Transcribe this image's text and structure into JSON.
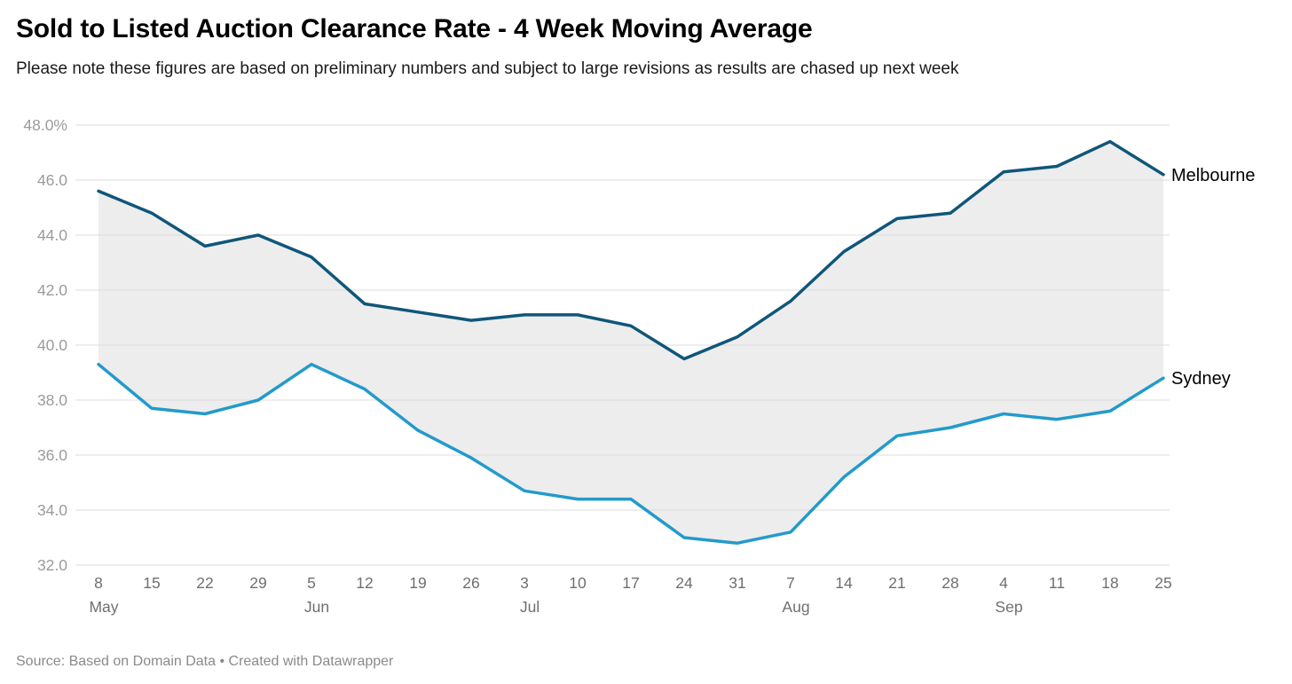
{
  "header": {
    "title": "Sold to Listed Auction Clearance Rate - 4 Week Moving Average",
    "subtitle": "Please note these figures are based on preliminary numbers and subject to large revisions as results are chased up next week"
  },
  "footer": {
    "source": "Source: Based on Domain Data • Created with Datawrapper"
  },
  "chart_data": {
    "type": "line",
    "title": "Sold to Listed Auction Clearance Rate - 4 Week Moving Average",
    "xlabel": "",
    "ylabel": "",
    "ylim": [
      32,
      48
    ],
    "grid": true,
    "ytick_values": [
      48,
      46,
      44,
      42,
      40,
      38,
      36,
      34,
      32
    ],
    "ytick_labels": [
      "48.0%",
      "46.0",
      "44.0",
      "42.0",
      "40.0",
      "38.0",
      "36.0",
      "34.0",
      "32.0"
    ],
    "categories": [
      "8",
      "15",
      "22",
      "29",
      "5",
      "12",
      "19",
      "26",
      "3",
      "10",
      "17",
      "24",
      "31",
      "7",
      "14",
      "21",
      "28",
      "4",
      "11",
      "18",
      "25"
    ],
    "month_labels": [
      {
        "index": 0,
        "label": "May"
      },
      {
        "index": 4,
        "label": "Jun"
      },
      {
        "index": 8,
        "label": "Jul"
      },
      {
        "index": 13,
        "label": "Aug"
      },
      {
        "index": 17,
        "label": "Sep"
      }
    ],
    "series": [
      {
        "name": "Melbourne",
        "color": "#10567a",
        "values": [
          45.6,
          44.8,
          43.6,
          44.0,
          43.2,
          41.5,
          41.2,
          40.9,
          41.1,
          41.1,
          40.7,
          39.5,
          40.3,
          41.6,
          43.4,
          44.6,
          44.8,
          46.3,
          46.5,
          47.4,
          46.2
        ]
      },
      {
        "name": "Sydney",
        "color": "#239acc",
        "values": [
          39.3,
          37.7,
          37.5,
          38.0,
          39.3,
          38.4,
          36.9,
          35.9,
          34.7,
          34.4,
          34.4,
          33.0,
          32.8,
          33.2,
          35.2,
          36.7,
          37.0,
          37.5,
          37.3,
          37.6,
          38.8
        ]
      }
    ],
    "fill_between_color": "#ededed",
    "legend_position": "right-of-line-ends",
    "colors": {
      "gridline": "#dcdcdc",
      "ytick_text": "#9b9b9b",
      "xtick_text": "#6f6f6f",
      "series_label_text": "#000000"
    }
  }
}
